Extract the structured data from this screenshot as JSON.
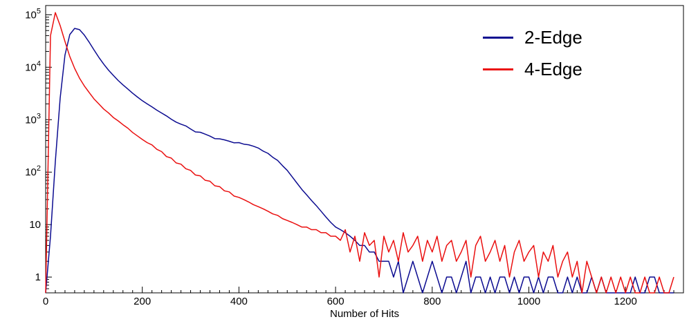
{
  "background": "#ffffff",
  "chart_data": {
    "type": "line",
    "title": "",
    "xlabel": "Number of Hits",
    "ylabel": "",
    "yscale": "log",
    "grid": false,
    "legend_position": "top-right",
    "xlim": [
      0,
      1320
    ],
    "ylim": [
      0.5,
      150000
    ],
    "x_ticks": [
      0,
      200,
      400,
      600,
      800,
      1000,
      1200
    ],
    "x_minor_step": 20,
    "y_ticks": [
      1,
      10,
      100,
      1000,
      10000,
      100000
    ],
    "y_tick_labels": [
      "1",
      "10",
      "10^2",
      "10^3",
      "10^4",
      "10^5"
    ],
    "x": {
      "start": 0,
      "step": 10
    },
    "series": [
      {
        "name": "2-Edge",
        "color": "#0b0b90",
        "values": [
          0,
          6,
          160,
          2600,
          17000,
          42000,
          55000,
          52000,
          41000,
          30000,
          21500,
          15500,
          11500,
          8800,
          7000,
          5600,
          4600,
          3850,
          3200,
          2700,
          2300,
          2000,
          1750,
          1520,
          1340,
          1180,
          1020,
          900,
          820,
          760,
          665,
          585,
          575,
          530,
          485,
          435,
          432,
          412,
          388,
          362,
          365,
          342,
          333,
          312,
          288,
          252,
          228,
          192,
          167,
          133,
          108,
          82,
          62,
          47,
          37,
          29,
          23,
          18,
          14,
          11,
          9,
          8,
          7,
          6,
          5,
          4,
          4,
          3,
          3,
          2,
          2,
          2,
          1,
          2,
          0,
          1,
          2,
          1,
          0,
          1,
          2,
          1,
          0,
          1,
          1,
          0,
          1,
          2,
          0,
          1,
          1,
          0,
          1,
          0,
          1,
          1,
          0,
          1,
          0,
          1,
          1,
          0,
          1,
          0,
          1,
          1,
          0,
          0,
          1,
          0,
          1,
          0,
          0,
          1,
          0,
          1,
          0,
          0,
          0,
          0,
          0,
          0,
          1,
          0,
          0,
          1,
          1,
          0,
          0,
          0,
          0
        ]
      },
      {
        "name": "4-Edge",
        "color": "#ea0f0f",
        "values": [
          0,
          40000,
          110000,
          62000,
          31000,
          16000,
          9500,
          6200,
          4400,
          3300,
          2500,
          2000,
          1600,
          1350,
          1100,
          950,
          800,
          690,
          570,
          490,
          420,
          365,
          330,
          272,
          246,
          198,
          185,
          150,
          142,
          116,
          108,
          88,
          85,
          70,
          67,
          55,
          53,
          44,
          42,
          35,
          33,
          30,
          27,
          24,
          22,
          20,
          18,
          16,
          15,
          13,
          12,
          11,
          10,
          9,
          9,
          8,
          8,
          7,
          7,
          6,
          6,
          5,
          8,
          3,
          6,
          2,
          7,
          4,
          5,
          1,
          6,
          3,
          5,
          2,
          7,
          3,
          4,
          6,
          2,
          5,
          3,
          6,
          2,
          4,
          5,
          2,
          3,
          5,
          1,
          4,
          6,
          2,
          3,
          5,
          2,
          4,
          1,
          3,
          5,
          2,
          3,
          4,
          1,
          3,
          2,
          4,
          1,
          2,
          3,
          1,
          2,
          0,
          2,
          1,
          0,
          1,
          0,
          1,
          0,
          1,
          0,
          1,
          0,
          0,
          1,
          0,
          0,
          1,
          0,
          0,
          1
        ]
      }
    ]
  }
}
